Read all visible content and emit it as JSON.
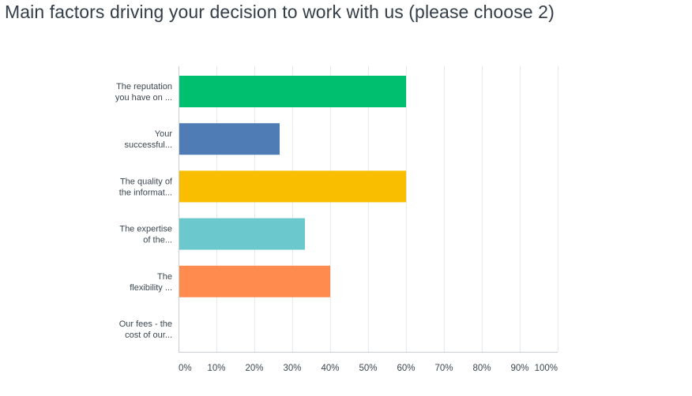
{
  "chart_data": {
    "type": "bar",
    "orientation": "horizontal",
    "title": "Main factors driving your decision to work with us (please choose 2)",
    "categories": [
      [
        "The reputation",
        "you have on ..."
      ],
      [
        "Your",
        "successful..."
      ],
      [
        "The quality of",
        "the informat..."
      ],
      [
        "The expertise",
        "of the..."
      ],
      [
        "The",
        "flexibility ..."
      ],
      [
        "Our fees - the",
        "cost of our..."
      ]
    ],
    "values": [
      60,
      26.67,
      60,
      33.33,
      40,
      0
    ],
    "colors": [
      "#00bf6f",
      "#507cb6",
      "#f9be00",
      "#6bc8cd",
      "#ff8b4f",
      "#7d7d7d"
    ],
    "xaxis": {
      "min": 0,
      "max": 100,
      "ticks": [
        0,
        10,
        20,
        30,
        40,
        50,
        60,
        70,
        80,
        90,
        100
      ],
      "tick_labels": [
        "0%",
        "10%",
        "20%",
        "30%",
        "40%",
        "50%",
        "60%",
        "70%",
        "80%",
        "90%",
        "100%"
      ]
    },
    "grid": true,
    "legend": "none"
  }
}
